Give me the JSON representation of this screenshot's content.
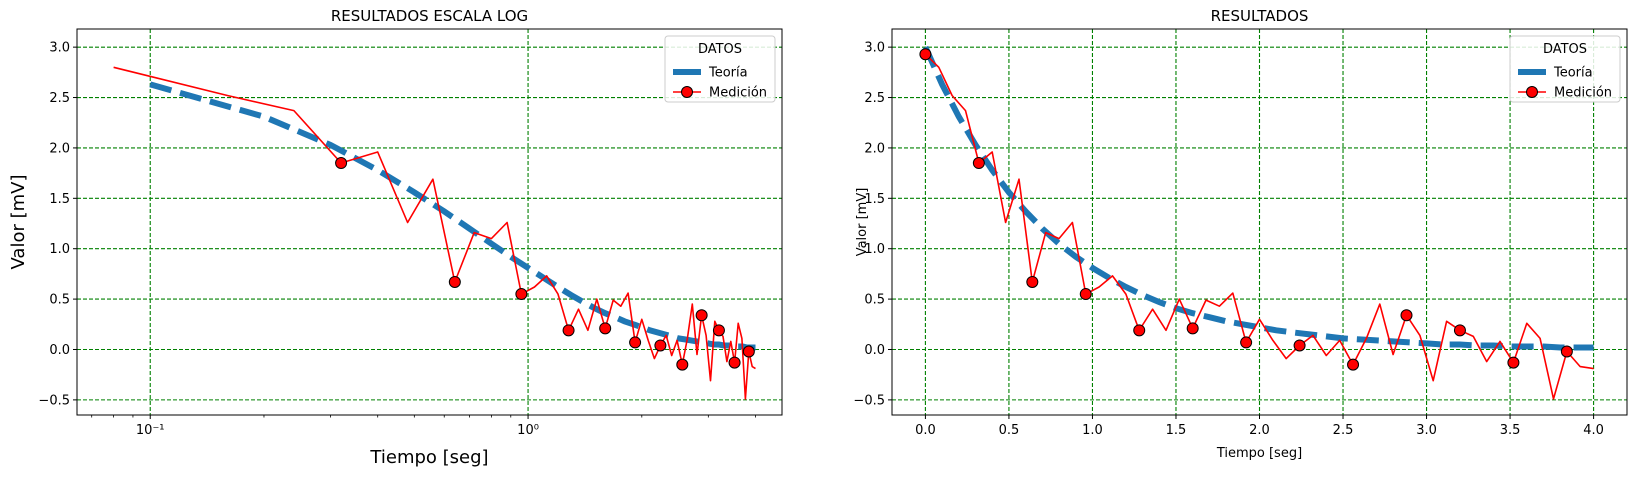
{
  "chart_data": [
    {
      "type": "line",
      "title": "RESULTADOS ESCALA LOG",
      "xlabel": "Tiempo [seg]",
      "ylabel": "Valor [mV]",
      "xscale": "log",
      "xlim": [
        0.064,
        4.7
      ],
      "ylim": [
        -0.65,
        3.18
      ],
      "x_ticks": [
        0.1,
        1
      ],
      "x_tick_labels": [
        "10⁻¹",
        "10⁰"
      ],
      "y_ticks": [
        -0.5,
        0.0,
        0.5,
        1.0,
        1.5,
        2.0,
        2.5,
        3.0
      ],
      "y_tick_labels": [
        "−0.5",
        "0.0",
        "0.5",
        "1.0",
        "1.5",
        "2.0",
        "2.5",
        "3.0"
      ],
      "grid": true,
      "grid_color": "#008000",
      "legend": {
        "title": "DATOS",
        "position": "top-right"
      },
      "series": [
        {
          "name": "Teoría",
          "style": "dashed",
          "color": "#1f77b4",
          "source": "theory"
        },
        {
          "name": "Medición",
          "style": "solid",
          "color": "#ff0000",
          "marker": "circle",
          "marker_color": "#ff0000",
          "source": "measurement"
        }
      ]
    },
    {
      "type": "line",
      "title": "RESULTADOS",
      "xlabel": "Tiempo [seg]",
      "ylabel": "Valor [mV]",
      "xscale": "linear",
      "xlim": [
        -0.2,
        4.2
      ],
      "ylim": [
        -0.65,
        3.18
      ],
      "x_ticks": [
        0.0,
        0.5,
        1.0,
        1.5,
        2.0,
        2.5,
        3.0,
        3.5,
        4.0
      ],
      "x_tick_labels": [
        "0.0",
        "0.5",
        "1.0",
        "1.5",
        "2.0",
        "2.5",
        "3.0",
        "3.5",
        "4.0"
      ],
      "y_ticks": [
        -0.5,
        0.0,
        0.5,
        1.0,
        1.5,
        2.0,
        2.5,
        3.0
      ],
      "y_tick_labels": [
        "−0.5",
        "0.0",
        "0.5",
        "1.0",
        "1.5",
        "2.0",
        "2.5",
        "3.0"
      ],
      "grid": true,
      "grid_color": "#008000",
      "legend": {
        "title": "DATOS",
        "position": "top-right"
      },
      "series": [
        {
          "name": "Teoría",
          "style": "dashed",
          "color": "#1f77b4",
          "source": "theory"
        },
        {
          "name": "Medición",
          "style": "solid",
          "color": "#ff0000",
          "marker": "circle",
          "marker_color": "#ff0000",
          "source": "measurement"
        }
      ]
    }
  ],
  "measurement": {
    "x": [
      0.0,
      0.08,
      0.16,
      0.24,
      0.32,
      0.4,
      0.48,
      0.56,
      0.64,
      0.72,
      0.8,
      0.88,
      0.96,
      1.04,
      1.12,
      1.2,
      1.28,
      1.36,
      1.44,
      1.52,
      1.6,
      1.68,
      1.76,
      1.84,
      1.92,
      2.0,
      2.08,
      2.16,
      2.24,
      2.32,
      2.4,
      2.48,
      2.56,
      2.64,
      2.72,
      2.8,
      2.88,
      2.96,
      3.04,
      3.12,
      3.2,
      3.28,
      3.36,
      3.44,
      3.52,
      3.6,
      3.68,
      3.76,
      3.84,
      3.92,
      4.0
    ],
    "y": [
      2.93,
      2.8,
      2.52,
      2.37,
      1.85,
      1.96,
      1.26,
      1.69,
      0.67,
      1.16,
      1.1,
      1.26,
      0.55,
      0.62,
      0.73,
      0.55,
      0.19,
      0.4,
      0.19,
      0.5,
      0.21,
      0.49,
      0.43,
      0.56,
      0.07,
      0.3,
      0.09,
      -0.09,
      0.04,
      0.14,
      -0.06,
      0.09,
      -0.15,
      0.11,
      0.45,
      -0.05,
      0.34,
      0.14,
      -0.31,
      0.28,
      0.19,
      0.13,
      -0.12,
      0.08,
      -0.13,
      0.26,
      0.11,
      -0.49,
      -0.02,
      -0.17,
      -0.19
    ]
  },
  "theory": {
    "x": [
      0.0,
      0.1,
      0.2,
      0.3,
      0.4,
      0.5,
      0.6,
      0.7,
      0.8,
      0.9,
      1.0,
      1.1,
      1.2,
      1.3,
      1.4,
      1.5,
      1.6,
      1.7,
      1.8,
      1.9,
      2.0,
      2.1,
      2.2,
      2.3,
      2.4,
      2.5,
      2.6,
      2.7,
      2.8,
      2.9,
      3.0,
      3.1,
      3.2,
      3.3,
      3.4,
      3.5,
      3.6,
      3.7,
      3.8,
      3.9,
      4.0
    ],
    "y": [
      3.0,
      2.63,
      2.31,
      2.03,
      1.78,
      1.56,
      1.37,
      1.2,
      1.05,
      0.92,
      0.81,
      0.71,
      0.62,
      0.54,
      0.47,
      0.41,
      0.36,
      0.32,
      0.28,
      0.25,
      0.22,
      0.19,
      0.17,
      0.15,
      0.13,
      0.11,
      0.1,
      0.09,
      0.08,
      0.07,
      0.06,
      0.05,
      0.05,
      0.04,
      0.04,
      0.03,
      0.03,
      0.03,
      0.02,
      0.02,
      0.02
    ]
  }
}
